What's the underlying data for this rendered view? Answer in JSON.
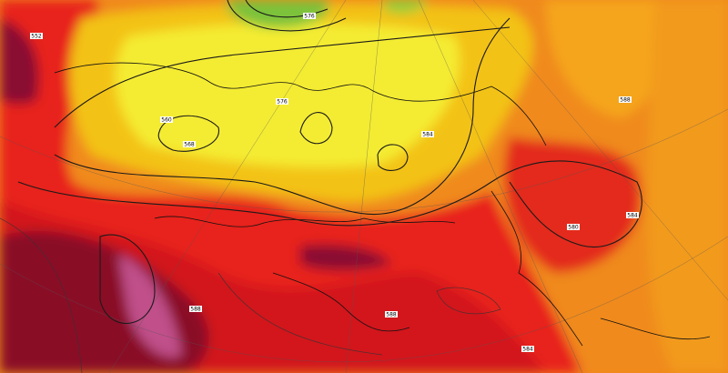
{
  "map": {
    "contour_labels": [
      "552",
      "560",
      "568",
      "576",
      "584",
      "588",
      "584",
      "576",
      "580",
      "588",
      "584",
      "588"
    ]
  }
}
